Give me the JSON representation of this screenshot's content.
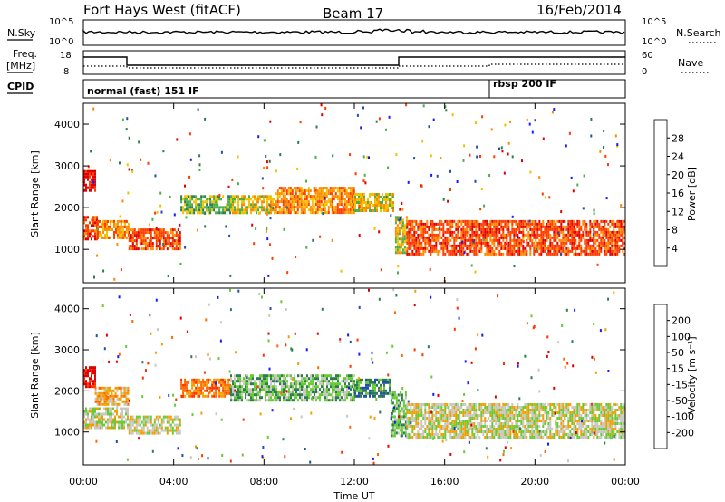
{
  "header": {
    "station": "Fort Hays West (fitACF)",
    "beam": "Beam 17",
    "date": "16/Feb/2014"
  },
  "panels": {
    "nsky": {
      "label": "N.Sky",
      "right_label": "N.Search",
      "left_ticks": [
        "10^5",
        "10^0"
      ],
      "right_ticks": [
        "10^5",
        "10^0"
      ]
    },
    "freq": {
      "label_line1": "Freq.",
      "label_line2": "[MHz]",
      "left_ticks": [
        "18",
        "8"
      ],
      "right_ticks": [
        "60",
        "0"
      ],
      "right_label": "Nave"
    },
    "cpid": {
      "label": "CPID",
      "mode_1": "normal (fast) 151 IF",
      "mode_2": "rbsp 200 IF"
    }
  },
  "chart_data": [
    {
      "type": "heatmap",
      "title": "",
      "ylabel": "Slant Range [km]",
      "xlabel": "",
      "x_ticks": [
        "00:00",
        "04:00",
        "08:00",
        "12:00",
        "16:00",
        "20:00",
        "00:00"
      ],
      "y_ticks": [
        1000,
        2000,
        3000,
        4000
      ],
      "ylim": [
        200,
        4500
      ],
      "xlim_hours": [
        0,
        24
      ],
      "colorbar": {
        "label": "Power [dB]",
        "ticks": [
          4,
          8,
          12,
          16,
          20,
          24,
          28
        ],
        "colors": [
          "#1a1aff",
          "#2250a8",
          "#2e7d50",
          "#4ab04a",
          "#f2c200",
          "#ff8a00",
          "#ff3b00",
          "#e00000"
        ]
      },
      "bands": [
        {
          "x": [
            0.0,
            0.6
          ],
          "y": [
            1250,
            1800
          ],
          "level": 6
        },
        {
          "x": [
            0.6,
            2.0
          ],
          "y": [
            1300,
            1700
          ],
          "level": 5
        },
        {
          "x": [
            0.0,
            0.5
          ],
          "y": [
            2400,
            2900
          ],
          "level": 7
        },
        {
          "x": [
            2.0,
            4.3
          ],
          "y": [
            1000,
            1500
          ],
          "level": 6
        },
        {
          "x": [
            4.3,
            6.5
          ],
          "y": [
            1900,
            2300
          ],
          "level": 3
        },
        {
          "x": [
            6.5,
            8.5
          ],
          "y": [
            1900,
            2300
          ],
          "level": 4
        },
        {
          "x": [
            8.5,
            12.0
          ],
          "y": [
            1900,
            2500
          ],
          "level": 5
        },
        {
          "x": [
            12.0,
            13.7
          ],
          "y": [
            1950,
            2350
          ],
          "level": 4
        },
        {
          "x": [
            13.8,
            14.3
          ],
          "y": [
            900,
            1800
          ],
          "level": 4
        },
        {
          "x": [
            14.3,
            24.0
          ],
          "y": [
            900,
            1700
          ],
          "level": 6
        }
      ]
    },
    {
      "type": "heatmap",
      "title": "",
      "ylabel": "Slant Range [km]",
      "xlabel": "Time UT",
      "x_ticks": [
        "00:00",
        "04:00",
        "08:00",
        "12:00",
        "16:00",
        "20:00",
        "00:00"
      ],
      "y_ticks": [
        1000,
        2000,
        3000,
        4000
      ],
      "ylim": [
        200,
        4500
      ],
      "xlim_hours": [
        0,
        24
      ],
      "colorbar": {
        "label": "Velocity [m s⁻¹]",
        "ticks": [
          200,
          100,
          50,
          15,
          -15,
          -50,
          -100,
          -200
        ],
        "colors": [
          "#1a1aff",
          "#2250a8",
          "#2e7d50",
          "#66cc33",
          "#c8c8c0",
          "#f2a000",
          "#ff6a00",
          "#ff3300",
          "#e00000"
        ]
      },
      "bands": [
        {
          "x": [
            0.0,
            0.5
          ],
          "y": [
            2100,
            2600
          ],
          "level": 8
        },
        {
          "x": [
            0.0,
            2.0
          ],
          "y": [
            1100,
            1600
          ],
          "level": 4
        },
        {
          "x": [
            0.5,
            2.0
          ],
          "y": [
            1700,
            2100
          ],
          "level": 5
        },
        {
          "x": [
            2.0,
            4.3
          ],
          "y": [
            1000,
            1400
          ],
          "level": 4
        },
        {
          "x": [
            4.3,
            6.5
          ],
          "y": [
            1900,
            2300
          ],
          "level": 6
        },
        {
          "x": [
            6.5,
            12.0
          ],
          "y": [
            1800,
            2400
          ],
          "level": 3
        },
        {
          "x": [
            12.0,
            13.6
          ],
          "y": [
            1900,
            2300
          ],
          "level": 2
        },
        {
          "x": [
            13.6,
            14.3
          ],
          "y": [
            900,
            2000
          ],
          "level": 3
        },
        {
          "x": [
            14.3,
            24.0
          ],
          "y": [
            900,
            1700
          ],
          "level": 4
        }
      ]
    }
  ]
}
